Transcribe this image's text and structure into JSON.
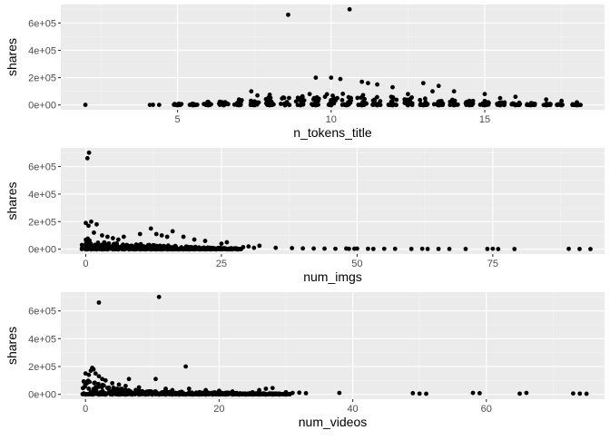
{
  "chart_data": [
    {
      "type": "scatter",
      "xlabel": "n_tokens_title",
      "ylabel": "shares",
      "xlim": [
        1.2,
        18.9
      ],
      "ylim": [
        -35000,
        735000
      ],
      "x_ticks": [
        5,
        10,
        15
      ],
      "x_tick_labels": [
        "5",
        "10",
        "15"
      ],
      "y_ticks": [
        0,
        200000,
        400000,
        600000
      ],
      "y_tick_labels": [
        "0e+00",
        "2e+05",
        "4e+05",
        "6e+05"
      ],
      "points": [
        [
          2,
          1000
        ],
        [
          4.1,
          900
        ],
        [
          4.2,
          1200
        ],
        [
          4.4,
          800
        ],
        [
          5,
          1500
        ],
        [
          6,
          15000
        ],
        [
          7,
          40000
        ],
        [
          7.4,
          100000
        ],
        [
          7.6,
          70000
        ],
        [
          8,
          75000
        ],
        [
          9.5,
          200000
        ],
        [
          9.8,
          60000
        ],
        [
          10,
          200000
        ],
        [
          10.3,
          190000
        ],
        [
          10.2,
          50000
        ],
        [
          11,
          170000
        ],
        [
          11.2,
          160000
        ],
        [
          11.5,
          150000
        ],
        [
          12,
          130000
        ],
        [
          13,
          160000
        ],
        [
          13.5,
          140000
        ],
        [
          14,
          100000
        ],
        [
          15,
          80000
        ],
        [
          15.5,
          50000
        ],
        [
          16,
          60000
        ],
        [
          17,
          40000
        ],
        [
          18,
          20000
        ],
        [
          8.6,
          660000
        ],
        [
          10.6,
          700000
        ],
        [
          12.5,
          80000
        ],
        [
          13.3,
          100000
        ],
        [
          9.3,
          80000
        ],
        [
          14.5,
          30000
        ],
        [
          17.5,
          30000
        ]
      ],
      "clusters": [
        {
          "x": 5,
          "max": 9000
        },
        {
          "x": 5.5,
          "max": 12000
        },
        {
          "x": 6,
          "max": 25000
        },
        {
          "x": 6.5,
          "max": 28000
        },
        {
          "x": 7,
          "max": 35000
        },
        {
          "x": 7.5,
          "max": 40000
        },
        {
          "x": 8,
          "max": 55000
        },
        {
          "x": 8.5,
          "max": 60000
        },
        {
          "x": 9,
          "max": 65000
        },
        {
          "x": 9.5,
          "max": 70000
        },
        {
          "x": 10,
          "max": 80000
        },
        {
          "x": 10.5,
          "max": 85000
        },
        {
          "x": 11,
          "max": 75000
        },
        {
          "x": 11.5,
          "max": 70000
        },
        {
          "x": 12,
          "max": 65000
        },
        {
          "x": 12.5,
          "max": 60000
        },
        {
          "x": 13,
          "max": 55000
        },
        {
          "x": 13.5,
          "max": 45000
        },
        {
          "x": 14,
          "max": 40000
        },
        {
          "x": 14.5,
          "max": 30000
        },
        {
          "x": 15,
          "max": 30000
        },
        {
          "x": 15.5,
          "max": 20000
        },
        {
          "x": 16,
          "max": 20000
        },
        {
          "x": 16.5,
          "max": 15000
        },
        {
          "x": 17,
          "max": 12000
        },
        {
          "x": 17.5,
          "max": 8000
        },
        {
          "x": 18,
          "max": 6000
        }
      ]
    },
    {
      "type": "scatter",
      "xlabel": "num_imgs",
      "ylabel": "shares",
      "xlim": [
        -4.6,
        95.6
      ],
      "ylim": [
        -35000,
        735000
      ],
      "x_ticks": [
        0,
        25,
        50,
        75
      ],
      "x_tick_labels": [
        "0",
        "25",
        "50",
        "75"
      ],
      "y_ticks": [
        0,
        200000,
        400000,
        600000
      ],
      "y_tick_labels": [
        "0e+00",
        "2e+05",
        "4e+05",
        "6e+05"
      ],
      "points": [
        [
          0.3,
          660000
        ],
        [
          0.6,
          700000
        ],
        [
          0,
          190000
        ],
        [
          0.5,
          170000
        ],
        [
          1,
          200000
        ],
        [
          2,
          180000
        ],
        [
          1.5,
          120000
        ],
        [
          3,
          100000
        ],
        [
          4,
          90000
        ],
        [
          5,
          80000
        ],
        [
          6,
          70000
        ],
        [
          7,
          90000
        ],
        [
          10,
          110000
        ],
        [
          12,
          150000
        ],
        [
          13,
          110000
        ],
        [
          14,
          100000
        ],
        [
          15,
          90000
        ],
        [
          16,
          130000
        ],
        [
          18,
          90000
        ],
        [
          20,
          70000
        ],
        [
          22,
          60000
        ],
        [
          25,
          40000
        ],
        [
          26,
          50000
        ],
        [
          30,
          20000
        ],
        [
          32,
          25000
        ],
        [
          35,
          10000
        ],
        [
          38,
          8000
        ],
        [
          40,
          6000
        ],
        [
          42,
          5000
        ],
        [
          44,
          4000
        ],
        [
          46,
          3000
        ],
        [
          48,
          5000
        ],
        [
          50,
          4000
        ],
        [
          52,
          3000
        ],
        [
          53,
          2000
        ],
        [
          55,
          3000
        ],
        [
          57,
          2500
        ],
        [
          60,
          2000
        ],
        [
          62,
          3000
        ],
        [
          63,
          1500
        ],
        [
          65,
          2000
        ],
        [
          67,
          1800
        ],
        [
          70,
          1500
        ],
        [
          74,
          2000
        ],
        [
          75,
          3000
        ],
        [
          76,
          1000
        ],
        [
          79,
          1200
        ],
        [
          89,
          2500
        ],
        [
          91,
          1500
        ],
        [
          93,
          1000
        ],
        [
          48.5,
          2500
        ],
        [
          49.5,
          3500
        ],
        [
          29,
          15000
        ],
        [
          31,
          10000
        ]
      ],
      "clusters": [
        {
          "x": 0,
          "max": 100000
        },
        {
          "x": 1,
          "max": 80000
        },
        {
          "x": 2,
          "max": 60000
        },
        {
          "x": 3,
          "max": 55000
        },
        {
          "x": 4,
          "max": 50000
        },
        {
          "x": 5,
          "max": 45000
        },
        {
          "x": 6,
          "max": 40000
        },
        {
          "x": 7,
          "max": 40000
        },
        {
          "x": 8,
          "max": 35000
        },
        {
          "x": 9,
          "max": 35000
        },
        {
          "x": 10,
          "max": 40000
        },
        {
          "x": 11,
          "max": 35000
        },
        {
          "x": 12,
          "max": 40000
        },
        {
          "x": 13,
          "max": 30000
        },
        {
          "x": 14,
          "max": 30000
        },
        {
          "x": 15,
          "max": 28000
        },
        {
          "x": 16,
          "max": 26000
        },
        {
          "x": 17,
          "max": 22000
        },
        {
          "x": 18,
          "max": 20000
        },
        {
          "x": 19,
          "max": 18000
        },
        {
          "x": 20,
          "max": 18000
        },
        {
          "x": 21,
          "max": 16000
        },
        {
          "x": 22,
          "max": 15000
        },
        {
          "x": 23,
          "max": 14000
        },
        {
          "x": 24,
          "max": 12000
        },
        {
          "x": 25,
          "max": 12000
        },
        {
          "x": 26,
          "max": 10000
        },
        {
          "x": 27,
          "max": 9000
        },
        {
          "x": 28,
          "max": 8000
        }
      ]
    },
    {
      "type": "scatter",
      "xlabel": "num_videos",
      "ylabel": "shares",
      "xlim": [
        -3.7,
        77.7
      ],
      "ylim": [
        -35000,
        735000
      ],
      "x_ticks": [
        0,
        20,
        40,
        60
      ],
      "x_tick_labels": [
        "0",
        "20",
        "40",
        "60"
      ],
      "y_ticks": [
        0,
        200000,
        400000,
        600000
      ],
      "y_tick_labels": [
        "0e+00",
        "2e+05",
        "4e+05",
        "6e+05"
      ],
      "points": [
        [
          2,
          660000
        ],
        [
          11,
          700000
        ],
        [
          15,
          200000
        ],
        [
          1,
          190000
        ],
        [
          1.2,
          180000
        ],
        [
          0.8,
          170000
        ],
        [
          0,
          150000
        ],
        [
          0.5,
          140000
        ],
        [
          1.5,
          150000
        ],
        [
          2,
          130000
        ],
        [
          2.5,
          110000
        ],
        [
          3,
          100000
        ],
        [
          4,
          80000
        ],
        [
          5,
          70000
        ],
        [
          6,
          60000
        ],
        [
          6.5,
          110000
        ],
        [
          10.5,
          110000
        ],
        [
          8,
          50000
        ],
        [
          12,
          40000
        ],
        [
          15.5,
          40000
        ],
        [
          18,
          30000
        ],
        [
          20,
          25000
        ],
        [
          22,
          20000
        ],
        [
          25,
          15000
        ],
        [
          27,
          40000
        ],
        [
          28,
          45000
        ],
        [
          30,
          15000
        ],
        [
          31,
          10000
        ],
        [
          32,
          12000
        ],
        [
          33,
          8000
        ],
        [
          38,
          10000
        ],
        [
          49,
          8000
        ],
        [
          50,
          5000
        ],
        [
          51,
          4000
        ],
        [
          58,
          10000
        ],
        [
          59,
          8000
        ],
        [
          65,
          5000
        ],
        [
          66,
          10000
        ],
        [
          73,
          6000
        ],
        [
          74,
          5000
        ],
        [
          75,
          4000
        ],
        [
          26,
          30000
        ],
        [
          13,
          30000
        ]
      ],
      "clusters": [
        {
          "x": 0,
          "max": 100000
        },
        {
          "x": 1,
          "max": 90000
        },
        {
          "x": 2,
          "max": 80000
        },
        {
          "x": 3,
          "max": 70000
        },
        {
          "x": 4,
          "max": 55000
        },
        {
          "x": 5,
          "max": 45000
        },
        {
          "x": 6,
          "max": 40000
        },
        {
          "x": 7,
          "max": 35000
        },
        {
          "x": 8,
          "max": 30000
        },
        {
          "x": 9,
          "max": 30000
        },
        {
          "x": 10,
          "max": 28000
        },
        {
          "x": 11,
          "max": 26000
        },
        {
          "x": 12,
          "max": 24000
        },
        {
          "x": 13,
          "max": 22000
        },
        {
          "x": 14,
          "max": 20000
        },
        {
          "x": 15,
          "max": 20000
        },
        {
          "x": 16,
          "max": 18000
        },
        {
          "x": 17,
          "max": 16000
        },
        {
          "x": 18,
          "max": 14000
        },
        {
          "x": 19,
          "max": 14000
        },
        {
          "x": 20,
          "max": 12000
        },
        {
          "x": 21,
          "max": 12000
        },
        {
          "x": 22,
          "max": 10000
        },
        {
          "x": 23,
          "max": 10000
        },
        {
          "x": 24,
          "max": 9000
        },
        {
          "x": 25,
          "max": 8000
        },
        {
          "x": 26,
          "max": 8000
        },
        {
          "x": 27,
          "max": 7000
        },
        {
          "x": 28,
          "max": 6000
        },
        {
          "x": 29,
          "max": 5000
        },
        {
          "x": 30,
          "max": 5000
        }
      ]
    }
  ]
}
